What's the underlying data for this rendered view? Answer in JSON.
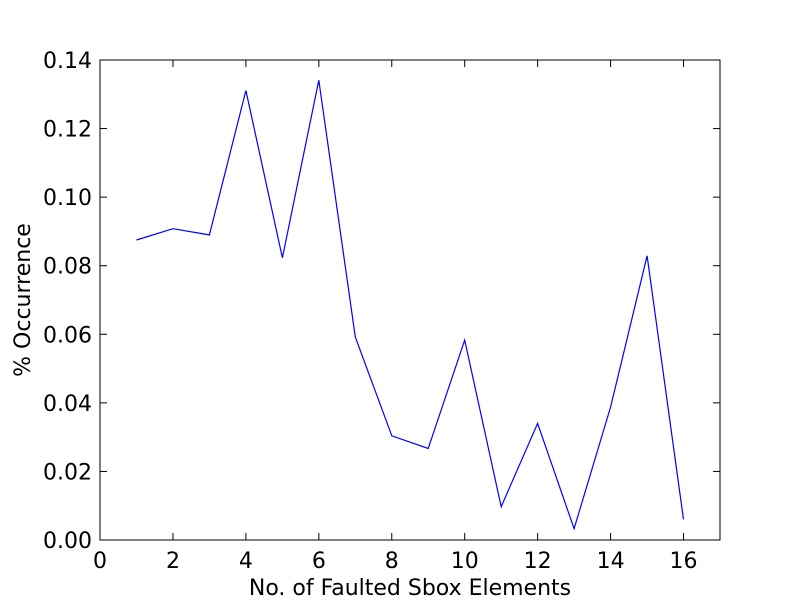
{
  "chart_data": {
    "type": "line",
    "title": "",
    "xlabel": "No. of Faulted Sbox Elements",
    "ylabel": "% Occurrence",
    "xlim": [
      0,
      17
    ],
    "ylim": [
      0,
      0.14
    ],
    "grid": false,
    "line_color": "#0000ff",
    "x_ticks": [
      0,
      2,
      4,
      6,
      8,
      10,
      12,
      14,
      16
    ],
    "x_tick_labels": [
      "0",
      "2",
      "4",
      "6",
      "8",
      "10",
      "12",
      "14",
      "16"
    ],
    "y_ticks": [
      0,
      0.02,
      0.04,
      0.06,
      0.08,
      0.1,
      0.12,
      0.14
    ],
    "y_tick_labels": [
      "0.00",
      "0.02",
      "0.04",
      "0.06",
      "0.08",
      "0.10",
      "0.12",
      "0.14"
    ],
    "series": [
      {
        "x": [
          1,
          2,
          3,
          4,
          5,
          6,
          7,
          8,
          9,
          10,
          11,
          12,
          13,
          14,
          15,
          16
        ],
        "values": [
          0.0875,
          0.0908,
          0.089,
          0.1311,
          0.0823,
          0.1341,
          0.0592,
          0.0304,
          0.0267,
          0.0583,
          0.0097,
          0.034,
          0.0033,
          0.0388,
          0.0829,
          0.006
        ]
      }
    ]
  }
}
